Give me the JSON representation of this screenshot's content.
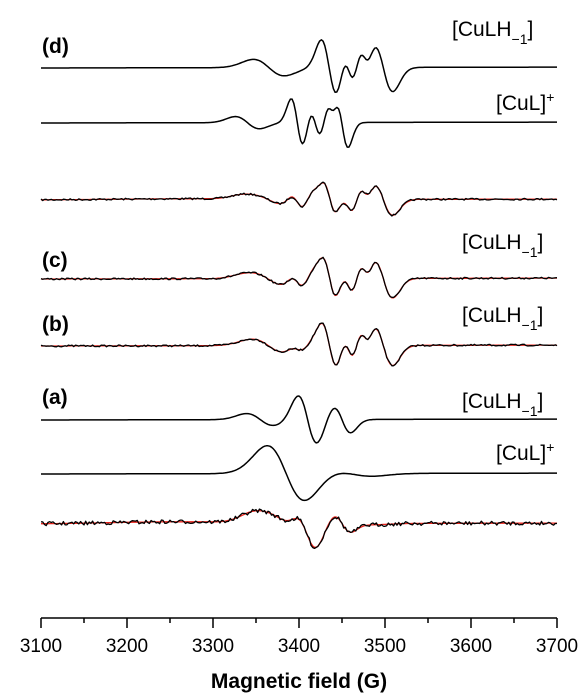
{
  "chart_data": {
    "type": "line",
    "xlabel": "Magnetic field (G)",
    "ylabel": "",
    "xlim": [
      3100,
      3700
    ],
    "xticks": [
      3100,
      3200,
      3300,
      3400,
      3500,
      3600,
      3700
    ],
    "grid": false,
    "legend": "none",
    "colors": {
      "experimental": "#000000",
      "simulated": "#e8241c",
      "component": "#000000"
    },
    "panel_labels": [
      "(d)",
      "(c)",
      "(b)",
      "(a)"
    ],
    "species_labels": [
      {
        "base": "[CuLH",
        "sub": "−1",
        "close": "]",
        "sup": ""
      },
      {
        "base": "[CuL]",
        "sub": "",
        "close": "",
        "sup": "+"
      },
      {
        "base": "[CuLH",
        "sub": "−1",
        "close": "]",
        "sup": ""
      },
      {
        "base": "[CuLH",
        "sub": "−1",
        "close": "]",
        "sup": ""
      },
      {
        "base": "[CuLH",
        "sub": "−1",
        "close": "]",
        "sup": ""
      },
      {
        "base": "[CuL]",
        "sub": "",
        "close": "",
        "sup": "+"
      }
    ]
  }
}
